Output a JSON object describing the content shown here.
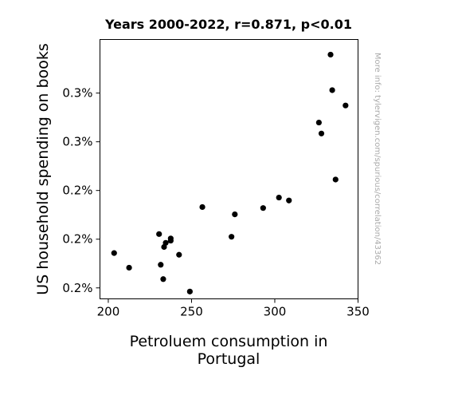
{
  "chart_data": {
    "type": "scatter",
    "title": "Years 2000-2022, r=0.871, p<0.01",
    "xlabel_lines": [
      "Petroluem consumption in",
      "Portugal"
    ],
    "ylabel": "US household spending on books",
    "watermark": "More info: tylervigen.com/spurious/correlation/43362",
    "xlim": [
      195,
      350
    ],
    "ylim": [
      0.001855,
      0.00292
    ],
    "xticks": [
      {
        "value": 200,
        "label": "200"
      },
      {
        "value": 250,
        "label": "250"
      },
      {
        "value": 300,
        "label": "300"
      },
      {
        "value": 350,
        "label": "350"
      }
    ],
    "yticks": [
      {
        "value": 0.0019,
        "label": "0.2%"
      },
      {
        "value": 0.0021,
        "label": "0.2%"
      },
      {
        "value": 0.0023,
        "label": "0.2%"
      },
      {
        "value": 0.0025,
        "label": "0.3%"
      },
      {
        "value": 0.0027,
        "label": "0.3%"
      }
    ],
    "marker_color": "#000000",
    "points": [
      {
        "x": 203.5,
        "y": 0.002043
      },
      {
        "x": 212.5,
        "y": 0.001983
      },
      {
        "x": 230.5,
        "y": 0.002121
      },
      {
        "x": 231.5,
        "y": 0.001995
      },
      {
        "x": 233.0,
        "y": 0.001936
      },
      {
        "x": 233.5,
        "y": 0.002068
      },
      {
        "x": 234.5,
        "y": 0.002085
      },
      {
        "x": 237.5,
        "y": 0.002094
      },
      {
        "x": 237.5,
        "y": 0.002103
      },
      {
        "x": 242.5,
        "y": 0.002036
      },
      {
        "x": 249.0,
        "y": 0.001885
      },
      {
        "x": 256.5,
        "y": 0.002232
      },
      {
        "x": 274.0,
        "y": 0.00211
      },
      {
        "x": 276.0,
        "y": 0.002202
      },
      {
        "x": 293.0,
        "y": 0.002228
      },
      {
        "x": 302.5,
        "y": 0.002271
      },
      {
        "x": 308.5,
        "y": 0.002259
      },
      {
        "x": 326.5,
        "y": 0.002579
      },
      {
        "x": 328.0,
        "y": 0.002534
      },
      {
        "x": 333.5,
        "y": 0.002858
      },
      {
        "x": 334.5,
        "y": 0.002712
      },
      {
        "x": 336.5,
        "y": 0.002345
      },
      {
        "x": 342.5,
        "y": 0.002649
      }
    ]
  }
}
